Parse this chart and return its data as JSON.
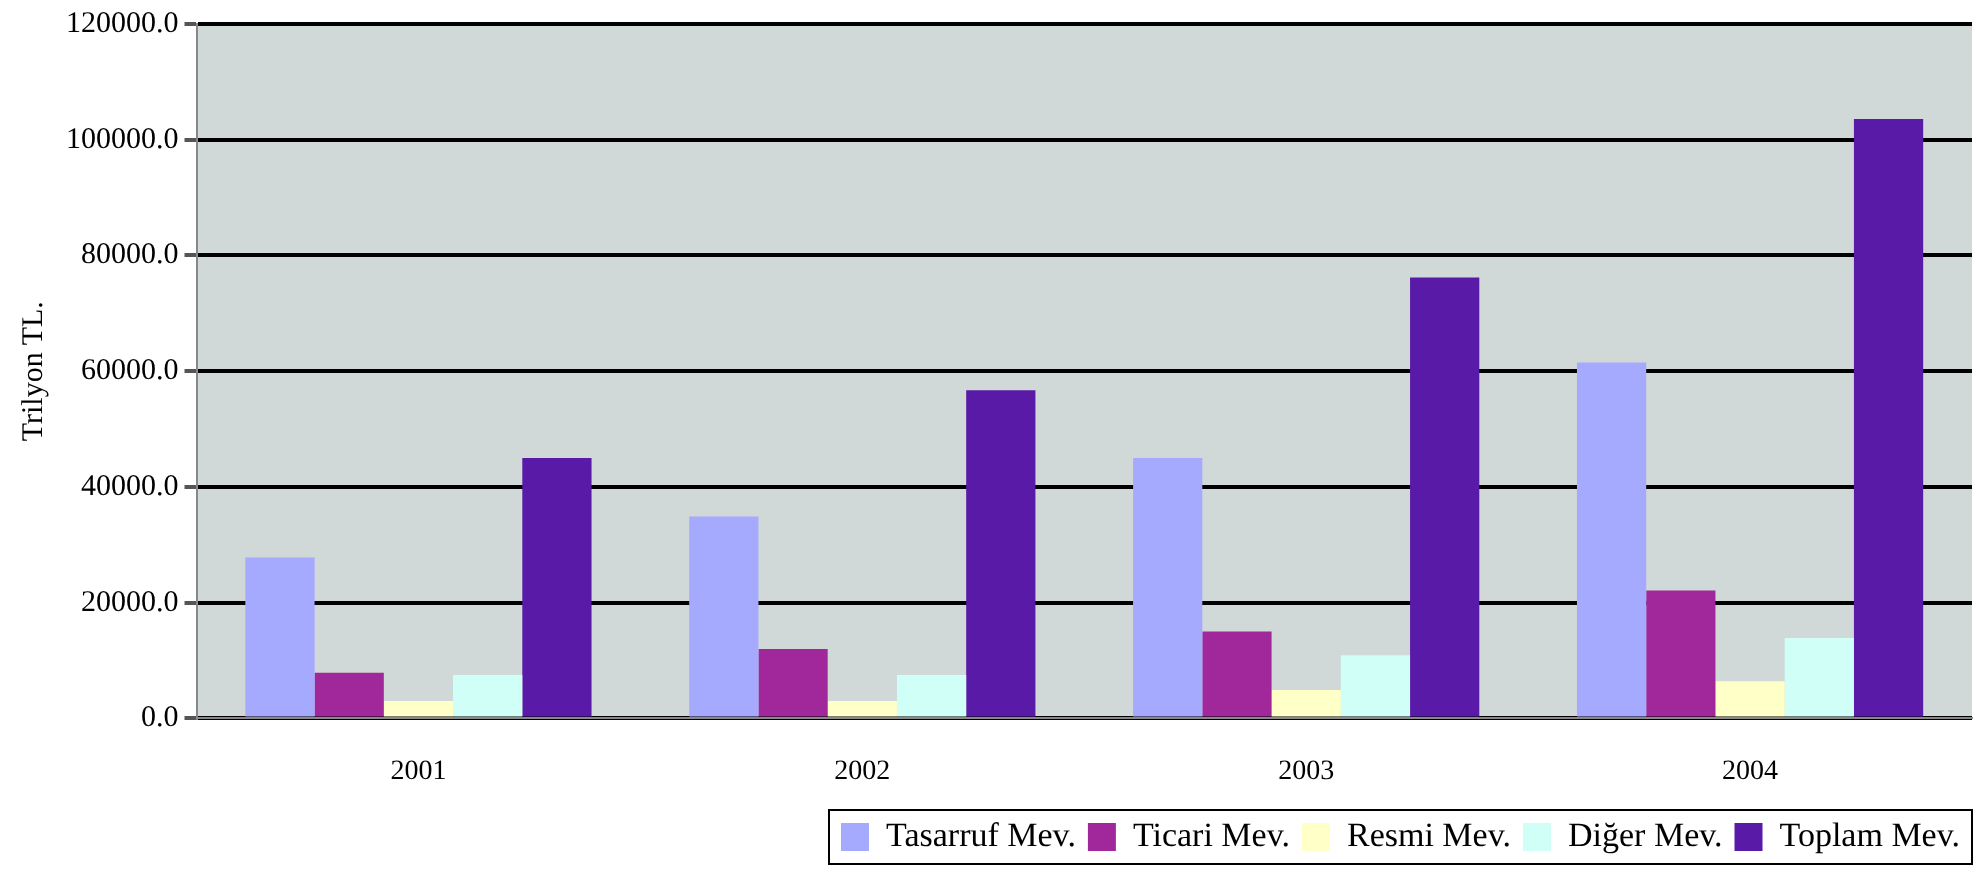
{
  "chart_data": {
    "type": "bar",
    "ylabel": "Trilyon TL.",
    "categories": [
      "2001",
      "2002",
      "2003",
      "2004"
    ],
    "series": [
      {
        "name": "Tasarruf Mev.",
        "color": "#a6aaff",
        "values": [
          27800,
          34900,
          45000,
          61500
        ]
      },
      {
        "name": "Ticari Mev.",
        "color": "#a0289a",
        "values": [
          7900,
          12000,
          15000,
          22100
        ]
      },
      {
        "name": "Resmi Mev.",
        "color": "#ffffc8",
        "values": [
          3000,
          3000,
          4900,
          6400
        ]
      },
      {
        "name": "Diğer Mev.",
        "color": "#d0fff8",
        "values": [
          7500,
          7500,
          10900,
          13900
        ]
      },
      {
        "name": "Toplam Mev.",
        "color": "#5a1aa8",
        "values": [
          45000,
          56700,
          76200,
          103600
        ]
      }
    ],
    "ylim": [
      0,
      120000
    ],
    "yticks": [
      {
        "value": 0,
        "label": "0.0"
      },
      {
        "value": 20000,
        "label": "20000.0"
      },
      {
        "value": 40000,
        "label": "40000.0"
      },
      {
        "value": 60000,
        "label": "60000.0"
      },
      {
        "value": 80000,
        "label": "80000.0"
      },
      {
        "value": 100000,
        "label": "100000.0"
      },
      {
        "value": 120000,
        "label": "120000.0"
      }
    ],
    "grid": "y",
    "legend": "bottom right"
  }
}
